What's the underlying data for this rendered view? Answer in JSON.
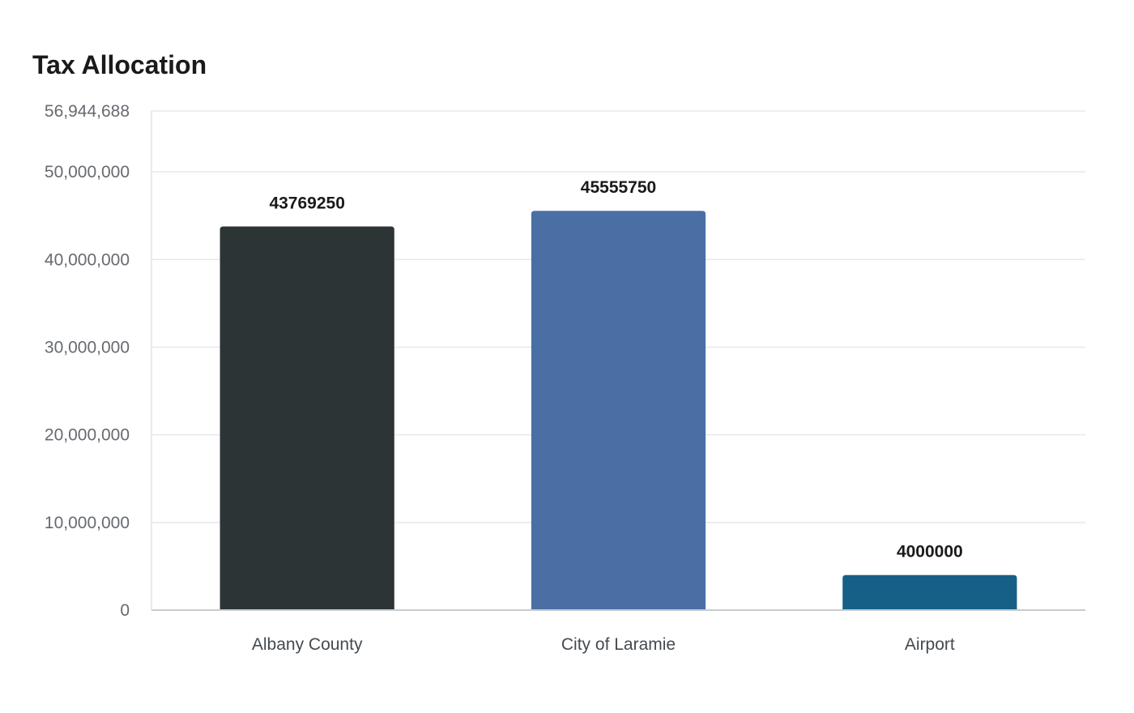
{
  "chart_data": {
    "type": "bar",
    "title": "Tax Allocation",
    "xlabel": "",
    "ylabel": "",
    "categories": [
      "Albany County",
      "City of Laramie",
      "Airport"
    ],
    "values": [
      43769250,
      45555750,
      4000000
    ],
    "data_labels": [
      "43769250",
      "45555750",
      "4000000"
    ],
    "colors": [
      "#2d3436",
      "#4a6fa5",
      "#166088"
    ],
    "ylim": [
      0,
      56944688
    ],
    "yticks": [
      0,
      10000000,
      20000000,
      30000000,
      40000000,
      50000000,
      56944688
    ],
    "ytick_labels": [
      "0",
      "10,000,000",
      "20,000,000",
      "30,000,000",
      "40,000,000",
      "50,000,000",
      "56,944,688"
    ],
    "grid": true,
    "legend": "none"
  }
}
